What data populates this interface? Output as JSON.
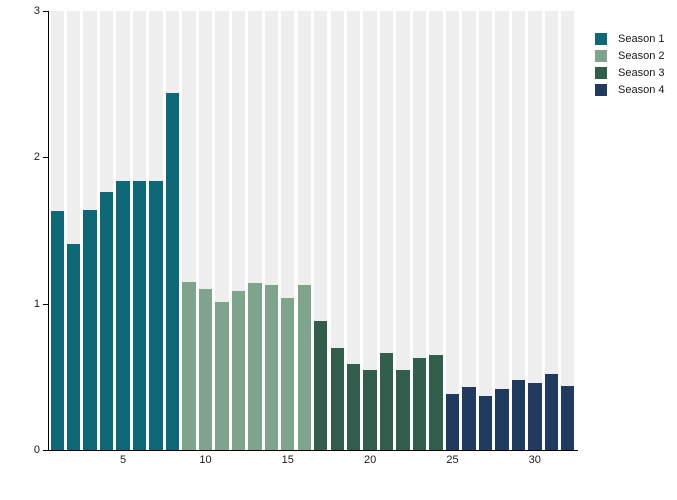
{
  "chart_data": {
    "type": "bar",
    "title": "",
    "xlabel": "",
    "ylabel": "",
    "x": [
      1,
      2,
      3,
      4,
      5,
      6,
      7,
      8,
      9,
      10,
      11,
      12,
      13,
      14,
      15,
      16,
      17,
      18,
      19,
      20,
      21,
      22,
      23,
      24,
      25,
      26,
      27,
      28,
      29,
      30,
      31,
      32
    ],
    "series": [
      {
        "name": "Season 1",
        "color": "#0d6877",
        "values": [
          1.63,
          1.41,
          1.64,
          1.76,
          1.84,
          1.84,
          1.84,
          2.44
        ]
      },
      {
        "name": "Season 2",
        "color": "#7fa48c",
        "values": [
          1.15,
          1.1,
          1.01,
          1.09,
          1.14,
          1.13,
          1.04,
          1.13
        ]
      },
      {
        "name": "Season 3",
        "color": "#325f4c",
        "values": [
          0.88,
          0.7,
          0.59,
          0.55,
          0.66,
          0.55,
          0.63,
          0.65
        ]
      },
      {
        "name": "Season 4",
        "color": "#213a5f",
        "values": [
          0.38,
          0.43,
          0.37,
          0.42,
          0.48,
          0.46,
          0.52,
          0.44
        ]
      }
    ],
    "ylim": [
      0,
      3
    ],
    "yticks": [
      "0",
      "1",
      "2",
      "3"
    ],
    "xticks": [
      5,
      10,
      15,
      20,
      25,
      30
    ],
    "grid": false,
    "background_bars": true,
    "background_bar_color": "#eeeeee",
    "axis_color": "#000000",
    "text_color": "#1a1a1a",
    "legend": {
      "position": "top-right"
    }
  }
}
